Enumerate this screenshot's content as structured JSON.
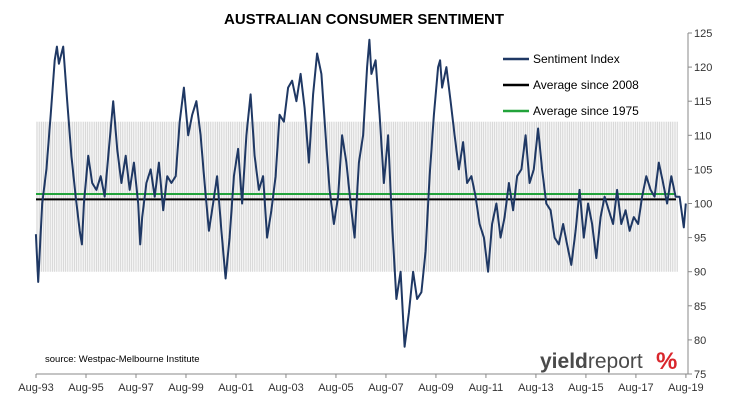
{
  "chart_data": {
    "type": "line",
    "title": "AUSTRALIAN CONSUMER SENTIMENT",
    "ylim": [
      75,
      125
    ],
    "yticks": [
      75,
      80,
      85,
      90,
      95,
      100,
      105,
      110,
      115,
      120,
      125
    ],
    "y_axis_side": "right",
    "xlim": [
      1993.583,
      2019.667
    ],
    "xticks": [
      {
        "value": 1993.583,
        "label": "Aug-93"
      },
      {
        "value": 1995.583,
        "label": "Aug-95"
      },
      {
        "value": 1997.583,
        "label": "Aug-97"
      },
      {
        "value": 1999.583,
        "label": "Aug-99"
      },
      {
        "value": 2001.583,
        "label": "Aug-01"
      },
      {
        "value": 2003.583,
        "label": "Aug-03"
      },
      {
        "value": 2005.583,
        "label": "Aug-05"
      },
      {
        "value": 2007.583,
        "label": "Aug-07"
      },
      {
        "value": 2009.583,
        "label": "Aug-09"
      },
      {
        "value": 2011.583,
        "label": "Aug-11"
      },
      {
        "value": 2013.583,
        "label": "Aug-13"
      },
      {
        "value": 2015.583,
        "label": "Aug-15"
      },
      {
        "value": 2017.583,
        "label": "Aug-17"
      },
      {
        "value": 2019.583,
        "label": "Aug-19"
      }
    ],
    "band": {
      "low": 90,
      "high": 112
    },
    "grid": false,
    "legend_position": "top-right",
    "series": [
      {
        "name": "Sentiment Index",
        "color": "#1f3864",
        "points": [
          [
            1993.58,
            95.5
          ],
          [
            1993.67,
            88.5
          ],
          [
            1993.83,
            100
          ],
          [
            1994.0,
            105
          ],
          [
            1994.17,
            113
          ],
          [
            1994.33,
            121
          ],
          [
            1994.42,
            123
          ],
          [
            1994.5,
            120.5
          ],
          [
            1994.67,
            123
          ],
          [
            1994.83,
            115
          ],
          [
            1995.0,
            107
          ],
          [
            1995.17,
            101
          ],
          [
            1995.33,
            96
          ],
          [
            1995.42,
            94
          ],
          [
            1995.5,
            100
          ],
          [
            1995.67,
            107
          ],
          [
            1995.83,
            103
          ],
          [
            1996.0,
            102
          ],
          [
            1996.17,
            104
          ],
          [
            1996.33,
            101
          ],
          [
            1996.5,
            108
          ],
          [
            1996.67,
            115
          ],
          [
            1996.83,
            108
          ],
          [
            1997.0,
            103
          ],
          [
            1997.17,
            107
          ],
          [
            1997.33,
            102
          ],
          [
            1997.5,
            106
          ],
          [
            1997.67,
            100
          ],
          [
            1997.75,
            94
          ],
          [
            1997.83,
            98
          ],
          [
            1998.0,
            103
          ],
          [
            1998.17,
            105
          ],
          [
            1998.33,
            101
          ],
          [
            1998.5,
            106
          ],
          [
            1998.67,
            99
          ],
          [
            1998.83,
            104
          ],
          [
            1999.0,
            103
          ],
          [
            1999.17,
            104
          ],
          [
            1999.33,
            112
          ],
          [
            1999.5,
            117
          ],
          [
            1999.67,
            110
          ],
          [
            1999.83,
            113
          ],
          [
            2000.0,
            115
          ],
          [
            2000.17,
            110
          ],
          [
            2000.33,
            103
          ],
          [
            2000.5,
            96
          ],
          [
            2000.67,
            100
          ],
          [
            2000.83,
            104
          ],
          [
            2001.0,
            96
          ],
          [
            2001.17,
            89
          ],
          [
            2001.33,
            95
          ],
          [
            2001.5,
            104
          ],
          [
            2001.67,
            108
          ],
          [
            2001.83,
            100
          ],
          [
            2002.0,
            110
          ],
          [
            2002.17,
            116
          ],
          [
            2002.33,
            107
          ],
          [
            2002.5,
            102
          ],
          [
            2002.67,
            104
          ],
          [
            2002.83,
            95
          ],
          [
            2003.0,
            99
          ],
          [
            2003.17,
            104
          ],
          [
            2003.33,
            113
          ],
          [
            2003.5,
            112
          ],
          [
            2003.67,
            117
          ],
          [
            2003.83,
            118
          ],
          [
            2004.0,
            115
          ],
          [
            2004.17,
            119
          ],
          [
            2004.33,
            114
          ],
          [
            2004.5,
            106
          ],
          [
            2004.67,
            116
          ],
          [
            2004.83,
            122
          ],
          [
            2005.0,
            119
          ],
          [
            2005.17,
            110
          ],
          [
            2005.33,
            102
          ],
          [
            2005.5,
            97
          ],
          [
            2005.67,
            101
          ],
          [
            2005.83,
            110
          ],
          [
            2006.0,
            106
          ],
          [
            2006.17,
            100
          ],
          [
            2006.33,
            95
          ],
          [
            2006.5,
            106
          ],
          [
            2006.67,
            110
          ],
          [
            2006.83,
            120
          ],
          [
            2006.92,
            124
          ],
          [
            2007.0,
            119
          ],
          [
            2007.17,
            121
          ],
          [
            2007.33,
            113
          ],
          [
            2007.5,
            103
          ],
          [
            2007.67,
            110
          ],
          [
            2007.83,
            97
          ],
          [
            2008.0,
            86
          ],
          [
            2008.17,
            90
          ],
          [
            2008.33,
            79
          ],
          [
            2008.5,
            84
          ],
          [
            2008.67,
            90
          ],
          [
            2008.83,
            86
          ],
          [
            2009.0,
            87
          ],
          [
            2009.17,
            93
          ],
          [
            2009.33,
            104
          ],
          [
            2009.5,
            113
          ],
          [
            2009.67,
            120
          ],
          [
            2009.75,
            121
          ],
          [
            2009.83,
            117
          ],
          [
            2010.0,
            120
          ],
          [
            2010.17,
            115
          ],
          [
            2010.33,
            110
          ],
          [
            2010.5,
            105
          ],
          [
            2010.67,
            109
          ],
          [
            2010.83,
            103
          ],
          [
            2011.0,
            104
          ],
          [
            2011.17,
            101
          ],
          [
            2011.33,
            97
          ],
          [
            2011.5,
            95
          ],
          [
            2011.67,
            90
          ],
          [
            2011.83,
            97
          ],
          [
            2012.0,
            100
          ],
          [
            2012.17,
            95
          ],
          [
            2012.33,
            98
          ],
          [
            2012.5,
            103
          ],
          [
            2012.67,
            99
          ],
          [
            2012.83,
            104
          ],
          [
            2013.0,
            105
          ],
          [
            2013.17,
            110
          ],
          [
            2013.33,
            103
          ],
          [
            2013.5,
            105
          ],
          [
            2013.67,
            111
          ],
          [
            2013.83,
            105
          ],
          [
            2014.0,
            100
          ],
          [
            2014.17,
            99
          ],
          [
            2014.33,
            95
          ],
          [
            2014.5,
            94
          ],
          [
            2014.67,
            97
          ],
          [
            2014.83,
            94
          ],
          [
            2015.0,
            91
          ],
          [
            2015.17,
            96
          ],
          [
            2015.33,
            102
          ],
          [
            2015.5,
            95
          ],
          [
            2015.67,
            100
          ],
          [
            2015.83,
            97
          ],
          [
            2016.0,
            92
          ],
          [
            2016.17,
            98
          ],
          [
            2016.33,
            101
          ],
          [
            2016.5,
            99
          ],
          [
            2016.67,
            97
          ],
          [
            2016.83,
            102
          ],
          [
            2017.0,
            97
          ],
          [
            2017.17,
            99
          ],
          [
            2017.33,
            96
          ],
          [
            2017.5,
            98
          ],
          [
            2017.67,
            97
          ],
          [
            2017.83,
            101
          ],
          [
            2018.0,
            104
          ],
          [
            2018.17,
            102
          ],
          [
            2018.33,
            101
          ],
          [
            2018.5,
            106
          ],
          [
            2018.67,
            103
          ],
          [
            2018.83,
            100
          ],
          [
            2019.0,
            104
          ],
          [
            2019.17,
            101
          ],
          [
            2019.33,
            101
          ],
          [
            2019.5,
            96.5
          ],
          [
            2019.58,
            100
          ]
        ]
      },
      {
        "name": "Average since 2008",
        "color": "#000000",
        "value": 100.6
      },
      {
        "name": "Average since 1975",
        "color": "#22a33b",
        "value": 101.4
      }
    ],
    "annotation": "source: Westpac-Melbourne Institute"
  },
  "logo": {
    "part1": "yield",
    "part2": "report",
    "symbol": "%"
  }
}
